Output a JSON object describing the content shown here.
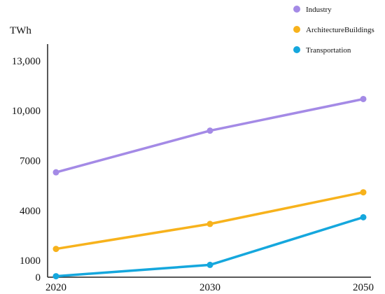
{
  "chart_data": {
    "type": "line",
    "ylabel": "TWh",
    "x": [
      "2020",
      "2030",
      "2050"
    ],
    "y_ticks": [
      {
        "value": 0,
        "label": "0"
      },
      {
        "value": 1000,
        "label": "1000"
      },
      {
        "value": 4000,
        "label": "4000"
      },
      {
        "value": 7000,
        "label": "7000"
      },
      {
        "value": 10000,
        "label": "10,000"
      },
      {
        "value": 13000,
        "label": "13,000"
      }
    ],
    "ylim": [
      0,
      14000
    ],
    "grid": false,
    "legend_position": "top-right",
    "series": [
      {
        "name": "Industry",
        "color": "#a48ae6",
        "values": [
          6300,
          8800,
          10700
        ]
      },
      {
        "name": "ArchitectureBuildings",
        "color": "#f7b21c",
        "values": [
          1700,
          3200,
          5100
        ]
      },
      {
        "name": "Transportation",
        "color": "#15a7dd",
        "values": [
          60,
          740,
          3600
        ]
      }
    ]
  }
}
